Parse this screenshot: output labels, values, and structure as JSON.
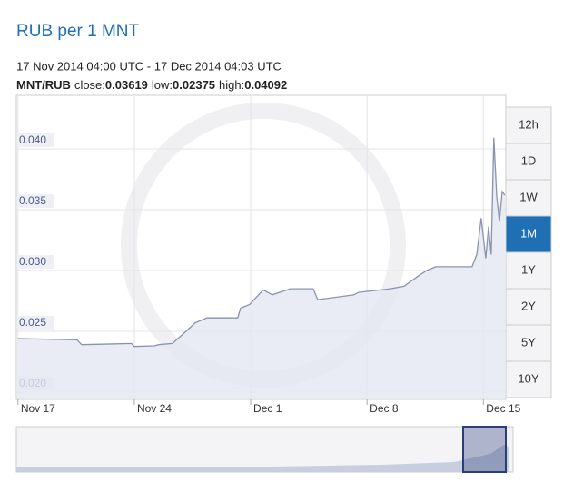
{
  "chart_data": {
    "type": "line",
    "title": "RUB per 1 MNT",
    "subtitle": "17 Nov 2014 04:00 UTC - 17 Dec 2014 04:03 UTC",
    "stats": {
      "pair": "MNT/RUB",
      "items": [
        {
          "label": "close:",
          "value": 0.03619
        },
        {
          "label": "low:",
          "value": 0.02375
        },
        {
          "label": "high:",
          "value": 0.04092
        }
      ]
    },
    "ranges": [
      "12h",
      "1D",
      "1W",
      "1M",
      "1Y",
      "2Y",
      "5Y",
      "10Y"
    ],
    "selected_range": "1M",
    "x": [
      0,
      3.55,
      3.83,
      6.83,
      6.99,
      8.2,
      8.47,
      9.29,
      10.11,
      10.66,
      11.37,
      13.22,
      13.39,
      13.93,
      14.75,
      15.3,
      16.39,
      17.76,
      18.03,
      20.22,
      20.49,
      22.4,
      23.22,
      24.04,
      24.59,
      25.14,
      27.32,
      27.6,
      27.87,
      28.14,
      28.31,
      28.47,
      28.63,
      28.8,
      28.96,
      29.13,
      29.29
    ],
    "series": [
      {
        "name": "MNT/RUB",
        "color": "#8a93ad",
        "values": [
          0.0244,
          0.0243,
          0.0239,
          0.024,
          0.02375,
          0.0238,
          0.0239,
          0.024,
          0.025,
          0.0257,
          0.0261,
          0.0261,
          0.0269,
          0.0272,
          0.0284,
          0.028,
          0.0285,
          0.0285,
          0.0276,
          0.028,
          0.0282,
          0.0285,
          0.0287,
          0.0295,
          0.03,
          0.0303,
          0.0303,
          0.0313,
          0.0343,
          0.031,
          0.0336,
          0.0313,
          0.04092,
          0.0362,
          0.034,
          0.0365,
          0.03619
        ]
      }
    ],
    "xlim": [
      -0.1,
      29.35
    ],
    "xticks": [
      {
        "value": 0,
        "label": "Nov 17"
      },
      {
        "value": 7,
        "label": "Nov 24"
      },
      {
        "value": 14,
        "label": "Dec 1"
      },
      {
        "value": 21,
        "label": "Dec 8"
      },
      {
        "value": 28,
        "label": "Dec 15"
      }
    ],
    "ylim": [
      0.0194,
      0.0444
    ],
    "yticks": [
      {
        "value": 0.02,
        "label": "0.020"
      },
      {
        "value": 0.025,
        "label": "0.025"
      },
      {
        "value": 0.03,
        "label": "0.030"
      },
      {
        "value": 0.035,
        "label": "0.035"
      },
      {
        "value": 0.04,
        "label": "0.040"
      }
    ],
    "grid": true
  }
}
